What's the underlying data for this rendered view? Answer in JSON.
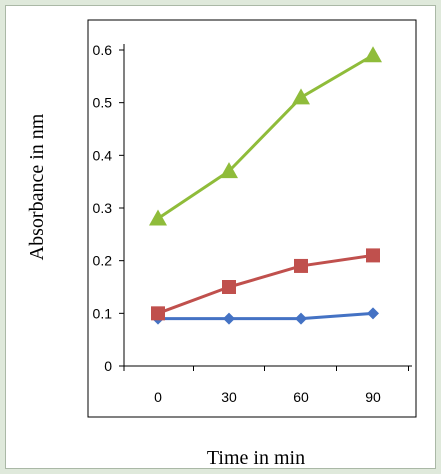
{
  "chart_data": {
    "type": "line",
    "title": "",
    "xlabel": "Time in min",
    "ylabel": "Absorbance in nm",
    "categories": [
      "0",
      "30",
      "60",
      "90"
    ],
    "ylim": [
      0,
      0.6
    ],
    "yticks": [
      "0",
      "0.1",
      "0.2",
      "0.3",
      "0.4",
      "0.5",
      "0.6"
    ],
    "grid": false,
    "legend": "none",
    "series": [
      {
        "values": [
          0.09,
          0.09,
          0.09,
          0.1
        ],
        "color": "#4472c4",
        "marker": "diamond"
      },
      {
        "values": [
          0.1,
          0.15,
          0.19,
          0.21
        ],
        "color": "#c0504d",
        "marker": "square"
      },
      {
        "values": [
          0.28,
          0.37,
          0.51,
          0.59
        ],
        "color": "#8fbc3a",
        "marker": "triangle"
      }
    ]
  }
}
